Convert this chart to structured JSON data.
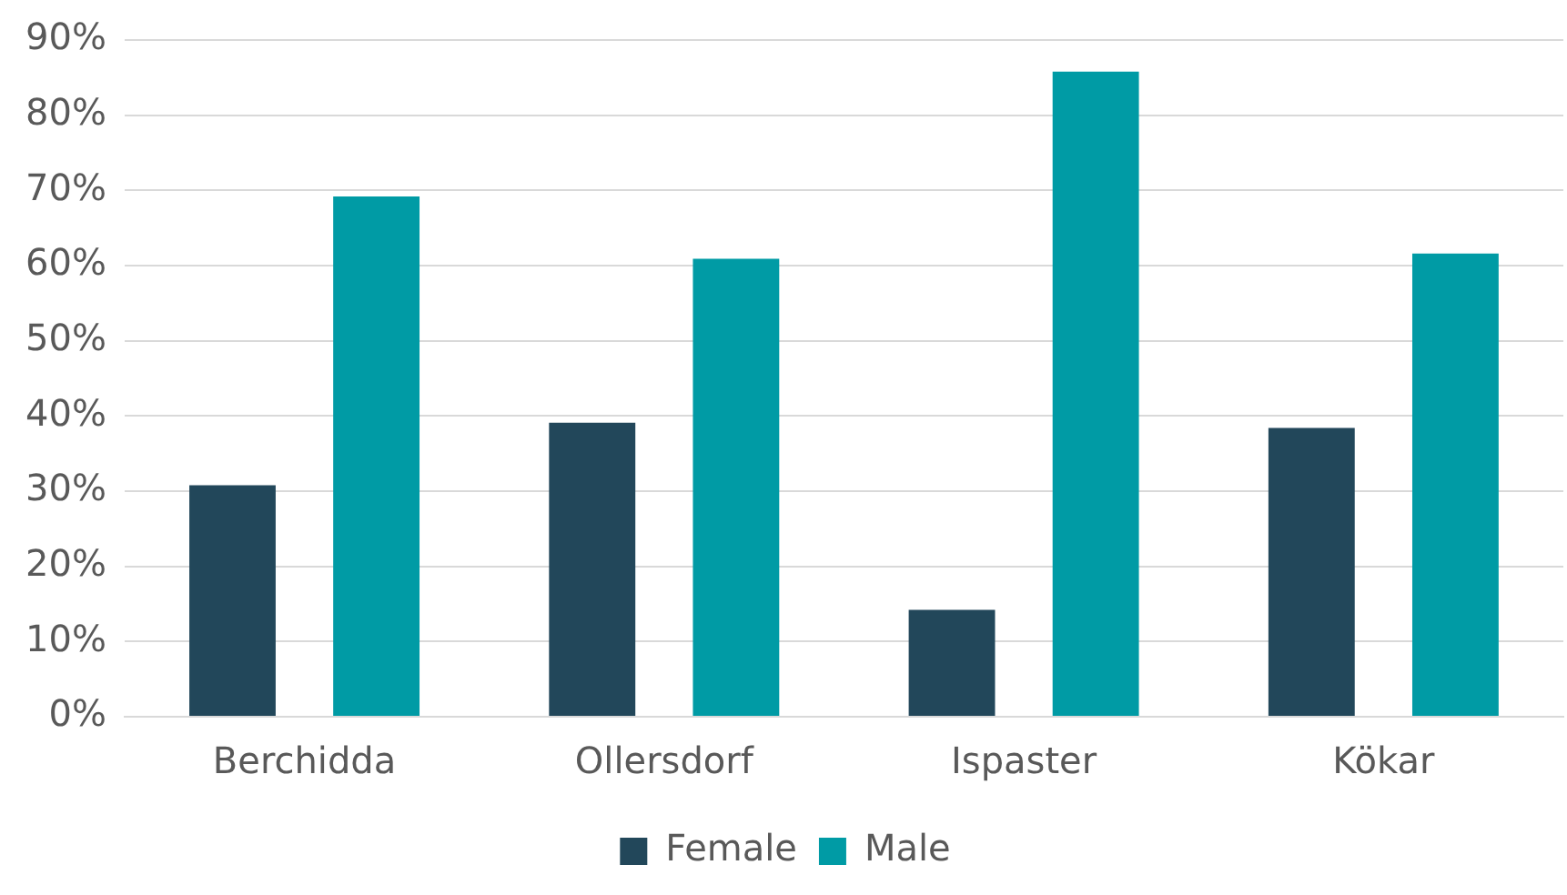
{
  "chart_data": {
    "type": "bar",
    "categories": [
      "Berchidda",
      "Ollersdorf",
      "Ispaster",
      "Kökar"
    ],
    "series": [
      {
        "name": "Female",
        "color": "#22475a",
        "values": [
          30.8,
          39.1,
          14.2,
          38.4
        ]
      },
      {
        "name": "Male",
        "color": "#009ba5",
        "values": [
          69.2,
          60.9,
          85.8,
          61.6
        ]
      }
    ],
    "ylim": [
      0,
      90
    ],
    "yticks": [
      {
        "value": 0,
        "label": "0%"
      },
      {
        "value": 10,
        "label": "10%"
      },
      {
        "value": 20,
        "label": "20%"
      },
      {
        "value": 30,
        "label": "30%"
      },
      {
        "value": 40,
        "label": "40%"
      },
      {
        "value": 50,
        "label": "50%"
      },
      {
        "value": 60,
        "label": "60%"
      },
      {
        "value": 70,
        "label": "70%"
      },
      {
        "value": 80,
        "label": "80%"
      },
      {
        "value": 90,
        "label": "90%"
      }
    ],
    "grid": "y",
    "legend": "bottom"
  }
}
